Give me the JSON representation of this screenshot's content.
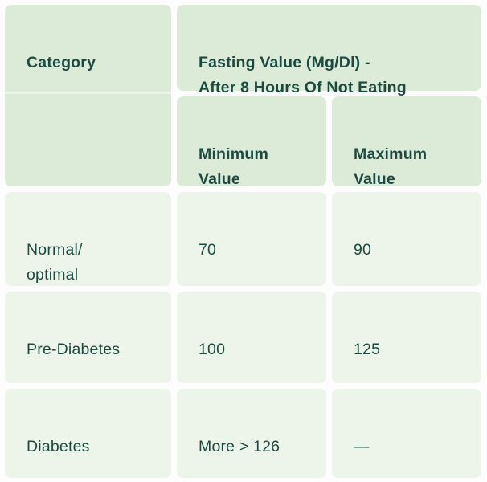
{
  "table": {
    "title_semantic": "Fasting blood sugar reference table",
    "colors": {
      "header_bg": "#dcebd7",
      "body_bg": "#edf4ea",
      "text": "#1c4a42",
      "gutter": "#fcfdfc"
    },
    "header": {
      "category_label": "Category",
      "fasting_label": "Fasting Value (Mg/Dl) -\nAfter 8 Hours Of Not Eating",
      "min_label": "Minimum\nValue",
      "max_label": "Maximum\nValue"
    },
    "rows": [
      {
        "category": "Normal/\noptimal",
        "min": "70",
        "max": "90"
      },
      {
        "category": "Pre-Diabetes",
        "min": "100",
        "max": "125"
      },
      {
        "category": "Diabetes",
        "min": "More > 126",
        "max": "—"
      }
    ]
  }
}
